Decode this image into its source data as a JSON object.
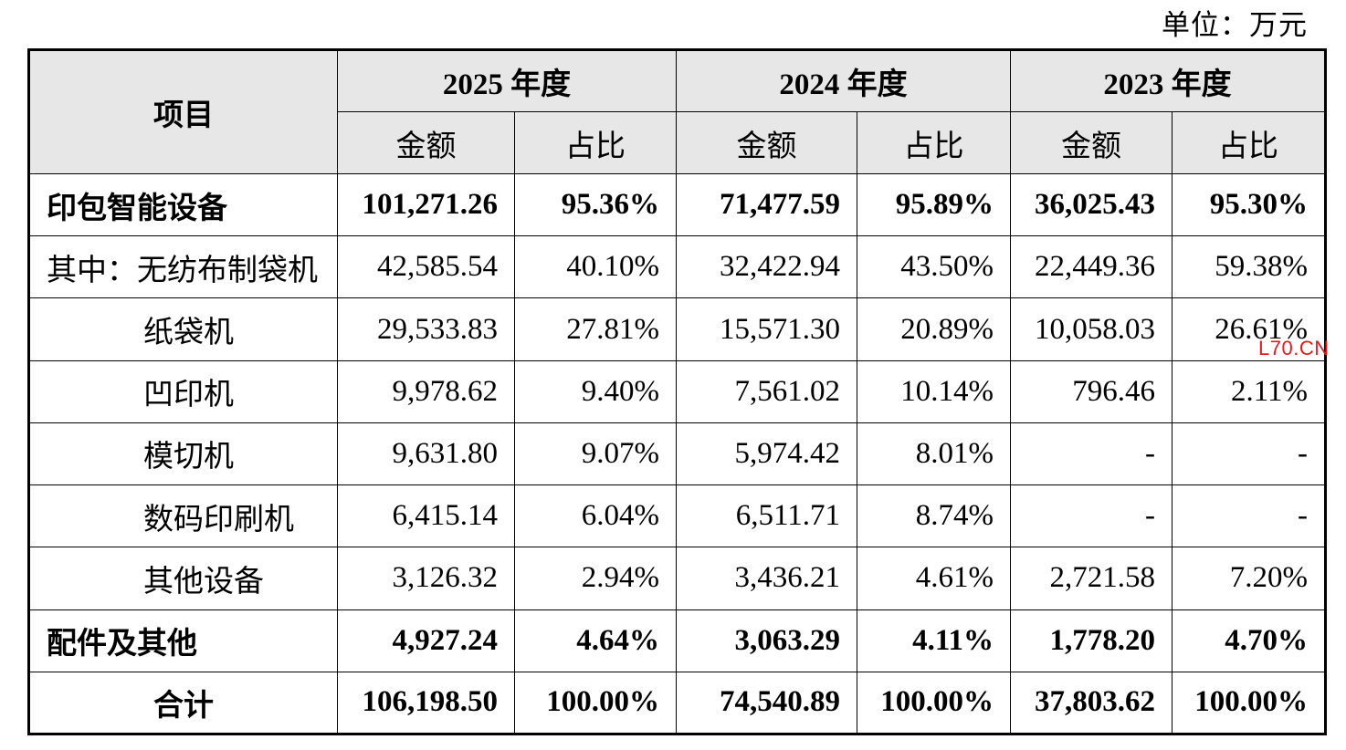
{
  "unit_label": "单位：万元",
  "header": {
    "item_label": "项目",
    "years": [
      "2025 年度",
      "2024 年度",
      "2023 年度"
    ],
    "amount_label": "金额",
    "ratio_label": "占比"
  },
  "rows": [
    {
      "label": "印包智能设备",
      "bold": true,
      "indent": false,
      "values": [
        "101,271.26",
        "95.36%",
        "71,477.59",
        "95.89%",
        "36,025.43",
        "95.30%"
      ]
    },
    {
      "label": "其中：无纺布制袋机",
      "bold": false,
      "indent": false,
      "values": [
        "42,585.54",
        "40.10%",
        "32,422.94",
        "43.50%",
        "22,449.36",
        "59.38%"
      ]
    },
    {
      "label": "纸袋机",
      "bold": false,
      "indent": true,
      "values": [
        "29,533.83",
        "27.81%",
        "15,571.30",
        "20.89%",
        "10,058.03",
        "26.61%"
      ]
    },
    {
      "label": "凹印机",
      "bold": false,
      "indent": true,
      "values": [
        "9,978.62",
        "9.40%",
        "7,561.02",
        "10.14%",
        "796.46",
        "2.11%"
      ]
    },
    {
      "label": "模切机",
      "bold": false,
      "indent": true,
      "values": [
        "9,631.80",
        "9.07%",
        "5,974.42",
        "8.01%",
        "-",
        "-"
      ]
    },
    {
      "label": "数码印刷机",
      "bold": false,
      "indent": true,
      "values": [
        "6,415.14",
        "6.04%",
        "6,511.71",
        "8.74%",
        "-",
        "-"
      ]
    },
    {
      "label": "其他设备",
      "bold": false,
      "indent": true,
      "values": [
        "3,126.32",
        "2.94%",
        "3,436.21",
        "4.61%",
        "2,721.58",
        "7.20%"
      ]
    },
    {
      "label": "配件及其他",
      "bold": true,
      "indent": false,
      "values": [
        "4,927.24",
        "4.64%",
        "3,063.29",
        "4.11%",
        "1,778.20",
        "4.70%"
      ]
    },
    {
      "label": "合计",
      "bold": true,
      "indent": false,
      "center": true,
      "values": [
        "106,198.50",
        "100.00%",
        "74,540.89",
        "100.00%",
        "37,803.62",
        "100.00%"
      ]
    }
  ],
  "watermark": "L70.CN"
}
